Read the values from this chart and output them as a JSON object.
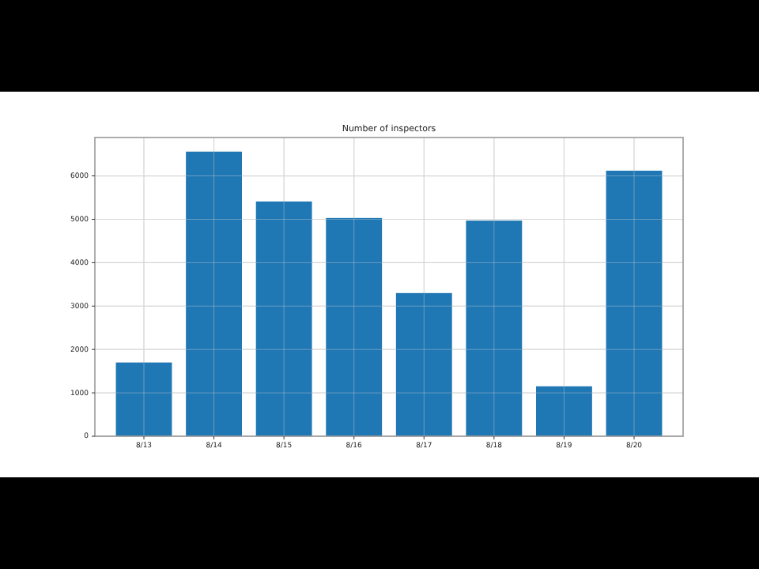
{
  "chart_data": {
    "type": "bar",
    "title": "Number of inspectors",
    "categories": [
      "8/13",
      "8/14",
      "8/15",
      "8/16",
      "8/17",
      "8/18",
      "8/19",
      "8/20"
    ],
    "values": [
      1700,
      6560,
      5410,
      5030,
      3300,
      4970,
      1150,
      6120
    ],
    "color": "#1f77b4",
    "ylim": [
      0,
      6885
    ],
    "yticks": [
      0,
      1000,
      2000,
      3000,
      4000,
      5000,
      6000
    ],
    "grid": true
  }
}
